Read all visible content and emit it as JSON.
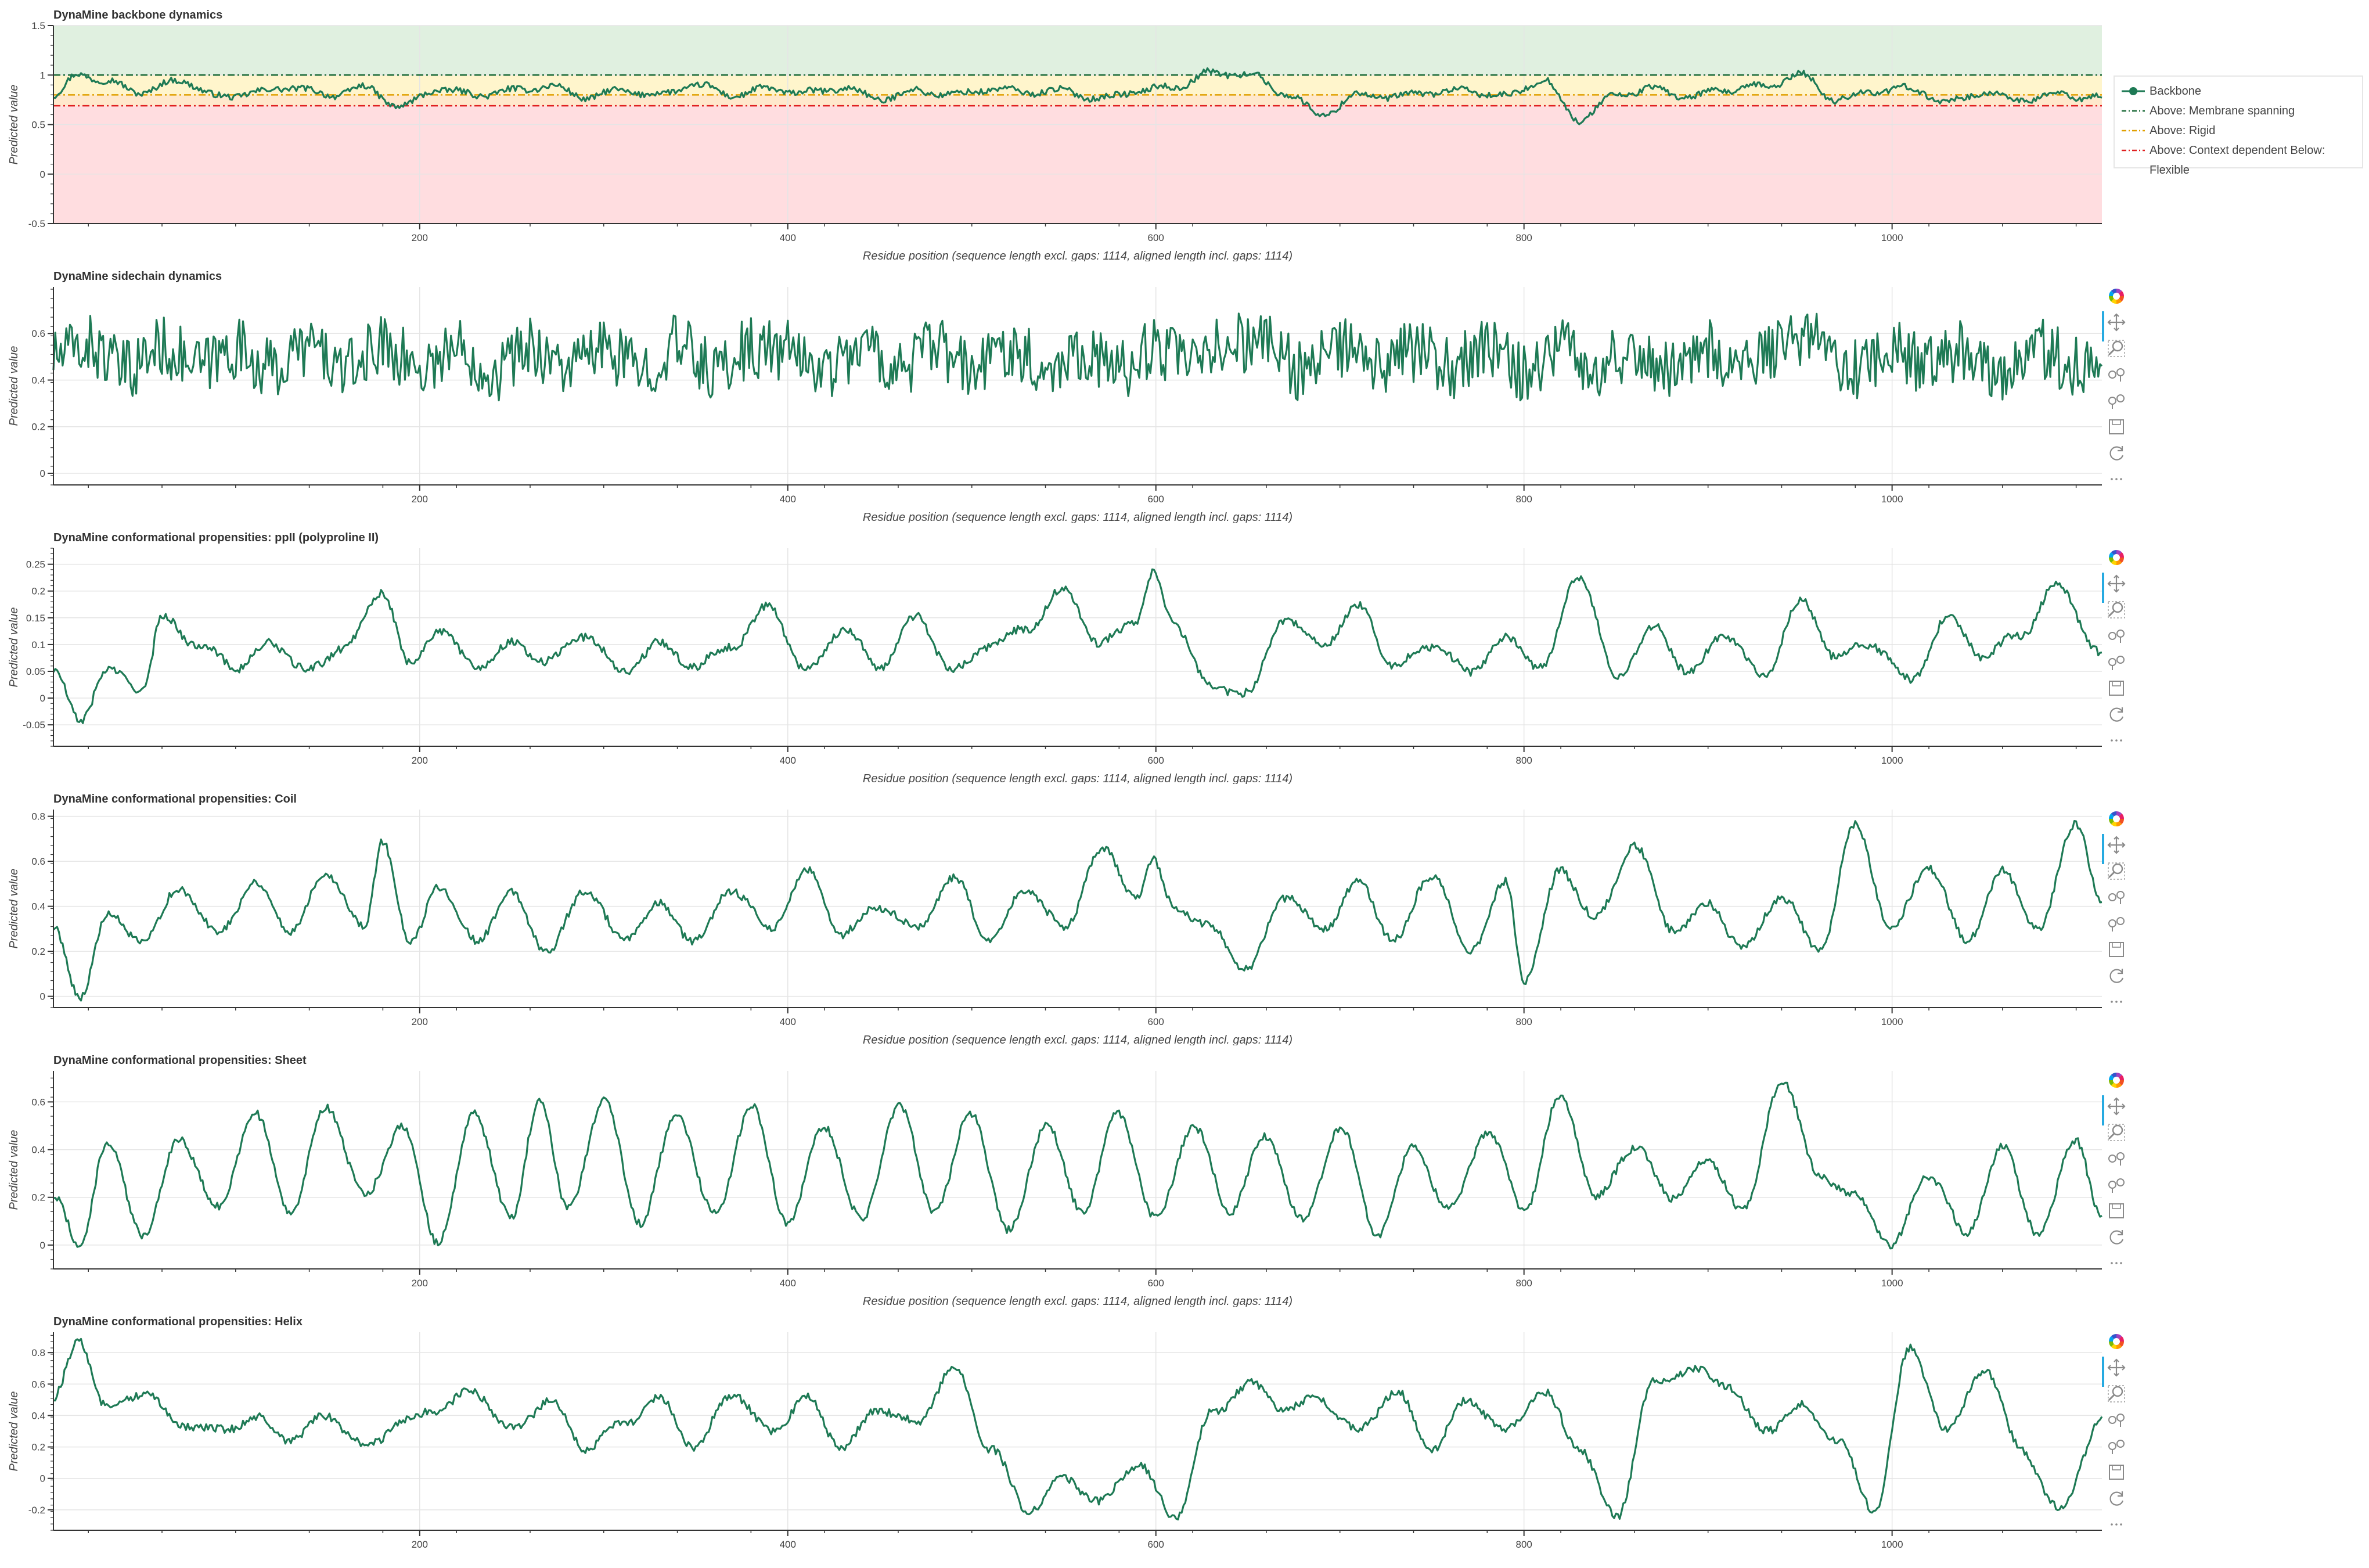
{
  "chart_data": [
    {
      "type": "line",
      "title": "DynaMine backbone dynamics",
      "xlabel": "Residue position (sequence length excl. gaps: 1114, aligned length incl. gaps: 1114)",
      "ylabel": "Predicted value",
      "xlim": [
        1,
        1114
      ],
      "ylim": [
        -0.5,
        1.5
      ],
      "x_ticks": [
        "200",
        "400",
        "600",
        "800",
        "1000"
      ],
      "y_ticks": [
        "1.5",
        "1",
        "0.5",
        "0",
        "-0.5"
      ],
      "grid": true,
      "legend_position": "right",
      "bands": [
        {
          "from": 1.0,
          "to": 1.5,
          "color": "#e0f0e0"
        },
        {
          "from": 0.8,
          "to": 1.0,
          "color": "#fff5cc"
        },
        {
          "from": 0.69,
          "to": 0.8,
          "color": "#ffe8cc"
        },
        {
          "from": -0.5,
          "to": 0.69,
          "color": "#ffdde0"
        }
      ],
      "thresholds": [
        {
          "name": "Above: Membrane spanning",
          "value": 1.0,
          "color": "#1d6b3a"
        },
        {
          "name": "Above: Rigid",
          "value": 0.8,
          "color": "#e0a000"
        },
        {
          "name": "Above: Context dependent Below: Flexible",
          "value": 0.69,
          "color": "#e02020"
        }
      ],
      "series": [
        {
          "name": "Backbone",
          "color": "#1e7a55",
          "x": [
            1,
            15,
            30,
            50,
            70,
            90,
            110,
            130,
            150,
            170,
            190,
            210,
            230,
            250,
            270,
            290,
            310,
            330,
            350,
            370,
            390,
            410,
            430,
            450,
            470,
            490,
            510,
            530,
            550,
            570,
            590,
            610,
            630,
            650,
            670,
            690,
            710,
            730,
            750,
            770,
            790,
            810,
            830,
            850,
            870,
            890,
            910,
            930,
            950,
            970,
            990,
            1010,
            1030,
            1050,
            1070,
            1090,
            1114
          ],
          "values": [
            0.78,
            1.02,
            0.93,
            0.83,
            0.95,
            0.78,
            0.82,
            0.88,
            0.8,
            0.87,
            0.68,
            0.86,
            0.8,
            0.84,
            0.89,
            0.78,
            0.84,
            0.8,
            0.9,
            0.8,
            0.86,
            0.82,
            0.87,
            0.76,
            0.84,
            0.8,
            0.86,
            0.83,
            0.84,
            0.76,
            0.84,
            0.88,
            1.02,
            1.01,
            0.82,
            0.6,
            0.8,
            0.78,
            0.83,
            0.84,
            0.78,
            0.95,
            0.55,
            0.8,
            0.86,
            0.78,
            0.85,
            0.88,
            1.0,
            0.75,
            0.84,
            0.86,
            0.73,
            0.82,
            0.75,
            0.8,
            0.77
          ]
        }
      ]
    },
    {
      "type": "line",
      "title": "DynaMine sidechain dynamics",
      "xlabel": "Residue position (sequence length excl. gaps: 1114, aligned length incl. gaps: 1114)",
      "ylabel": "Predicted value",
      "xlim": [
        1,
        1114
      ],
      "ylim": [
        -0.05,
        0.8
      ],
      "x_ticks": [
        "200",
        "400",
        "600",
        "800",
        "1000"
      ],
      "y_ticks": [
        "0.6",
        "0.4",
        "0.2",
        "0"
      ],
      "grid": true,
      "series": [
        {
          "name": "Sidechain",
          "color": "#1e7a55",
          "x": [
            1,
            20,
            40,
            60,
            80,
            100,
            120,
            140,
            160,
            180,
            200,
            220,
            240,
            260,
            280,
            300,
            320,
            340,
            360,
            380,
            400,
            420,
            440,
            460,
            480,
            500,
            520,
            540,
            560,
            580,
            600,
            620,
            640,
            660,
            680,
            700,
            720,
            740,
            760,
            780,
            800,
            820,
            840,
            860,
            880,
            900,
            920,
            940,
            960,
            980,
            1000,
            1020,
            1040,
            1060,
            1080,
            1100,
            1114
          ],
          "values": [
            0.5,
            0.66,
            0.3,
            0.64,
            0.35,
            0.62,
            0.32,
            0.66,
            0.3,
            0.68,
            0.34,
            0.62,
            0.3,
            0.64,
            0.36,
            0.6,
            0.32,
            0.66,
            0.3,
            0.62,
            0.58,
            0.33,
            0.64,
            0.35,
            0.62,
            0.3,
            0.66,
            0.34,
            0.6,
            0.3,
            0.64,
            0.36,
            0.72,
            0.7,
            0.3,
            0.62,
            0.32,
            0.58,
            0.34,
            0.6,
            0.3,
            0.66,
            0.36,
            0.6,
            0.32,
            0.64,
            0.3,
            0.66,
            0.7,
            0.3,
            0.62,
            0.34,
            0.6,
            0.3,
            0.62,
            0.35,
            0.55
          ]
        }
      ]
    },
    {
      "type": "line",
      "title": "DynaMine conformational propensities: ppII (polyproline II)",
      "xlabel": "Residue position (sequence length excl. gaps: 1114, aligned length incl. gaps: 1114)",
      "ylabel": "Predicted value",
      "xlim": [
        1,
        1114
      ],
      "ylim": [
        -0.09,
        0.28
      ],
      "x_ticks": [
        "200",
        "400",
        "600",
        "800",
        "1000"
      ],
      "y_ticks": [
        "0.25",
        "0.2",
        "0.15",
        "0.1",
        "0.05",
        "0",
        "-0.05"
      ],
      "grid": true,
      "series": [
        {
          "name": "ppII",
          "color": "#1e7a55",
          "x": [
            1,
            15,
            30,
            50,
            60,
            80,
            100,
            120,
            140,
            160,
            180,
            195,
            210,
            230,
            250,
            270,
            290,
            310,
            330,
            350,
            370,
            390,
            410,
            430,
            450,
            470,
            490,
            510,
            530,
            550,
            570,
            590,
            598,
            610,
            630,
            650,
            670,
            690,
            710,
            730,
            750,
            770,
            790,
            810,
            830,
            850,
            870,
            890,
            910,
            930,
            950,
            970,
            990,
            1010,
            1030,
            1050,
            1070,
            1090,
            1114
          ],
          "values": [
            0.05,
            -0.04,
            0.05,
            0.02,
            0.15,
            0.1,
            0.06,
            0.1,
            0.05,
            0.1,
            0.2,
            0.06,
            0.13,
            0.06,
            0.1,
            0.07,
            0.12,
            0.05,
            0.1,
            0.06,
            0.1,
            0.17,
            0.05,
            0.13,
            0.06,
            0.15,
            0.05,
            0.1,
            0.13,
            0.2,
            0.1,
            0.15,
            0.23,
            0.14,
            0.02,
            0.01,
            0.15,
            0.1,
            0.17,
            0.06,
            0.1,
            0.05,
            0.11,
            0.06,
            0.23,
            0.04,
            0.13,
            0.05,
            0.12,
            0.04,
            0.18,
            0.08,
            0.1,
            0.03,
            0.15,
            0.08,
            0.12,
            0.21,
            0.08
          ]
        }
      ]
    },
    {
      "type": "line",
      "title": "DynaMine conformational propensities: Coil",
      "xlabel": "Residue position (sequence length excl. gaps: 1114, aligned length incl. gaps: 1114)",
      "ylabel": "Predicted value",
      "xlim": [
        1,
        1114
      ],
      "ylim": [
        -0.05,
        0.83
      ],
      "x_ticks": [
        "200",
        "400",
        "600",
        "800",
        "1000"
      ],
      "y_ticks": [
        "0.8",
        "0.6",
        "0.4",
        "0.2",
        "0"
      ],
      "grid": true,
      "series": [
        {
          "name": "Coil",
          "color": "#1e7a55",
          "x": [
            1,
            15,
            30,
            50,
            70,
            90,
            110,
            130,
            150,
            170,
            180,
            195,
            210,
            230,
            250,
            270,
            290,
            310,
            330,
            350,
            370,
            390,
            410,
            430,
            450,
            470,
            490,
            510,
            530,
            550,
            570,
            590,
            598,
            610,
            630,
            650,
            670,
            690,
            710,
            730,
            750,
            770,
            790,
            800,
            820,
            840,
            860,
            880,
            900,
            920,
            940,
            960,
            980,
            1000,
            1020,
            1040,
            1060,
            1080,
            1100,
            1114
          ],
          "values": [
            0.3,
            0.0,
            0.35,
            0.25,
            0.48,
            0.28,
            0.5,
            0.3,
            0.55,
            0.3,
            0.7,
            0.22,
            0.5,
            0.25,
            0.45,
            0.2,
            0.48,
            0.25,
            0.4,
            0.25,
            0.48,
            0.3,
            0.55,
            0.28,
            0.4,
            0.3,
            0.52,
            0.25,
            0.48,
            0.3,
            0.65,
            0.45,
            0.6,
            0.4,
            0.3,
            0.12,
            0.45,
            0.3,
            0.5,
            0.25,
            0.55,
            0.2,
            0.5,
            0.08,
            0.55,
            0.35,
            0.68,
            0.3,
            0.4,
            0.22,
            0.45,
            0.2,
            0.75,
            0.3,
            0.58,
            0.25,
            0.55,
            0.3,
            0.78,
            0.4
          ]
        }
      ]
    },
    {
      "type": "line",
      "title": "DynaMine conformational propensities: Sheet",
      "xlabel": "Residue position (sequence length excl. gaps: 1114, aligned length incl. gaps: 1114)",
      "ylabel": "Predicted value",
      "xlim": [
        1,
        1114
      ],
      "ylim": [
        -0.1,
        0.73
      ],
      "x_ticks": [
        "200",
        "400",
        "600",
        "800",
        "1000"
      ],
      "y_ticks": [
        "0.6",
        "0.4",
        "0.2",
        "0"
      ],
      "grid": true,
      "series": [
        {
          "name": "Sheet",
          "color": "#1e7a55",
          "x": [
            1,
            15,
            30,
            50,
            70,
            90,
            110,
            130,
            150,
            170,
            190,
            210,
            230,
            250,
            265,
            280,
            300,
            320,
            340,
            360,
            380,
            400,
            420,
            440,
            460,
            480,
            500,
            520,
            540,
            560,
            580,
            600,
            620,
            640,
            660,
            680,
            700,
            720,
            740,
            760,
            780,
            800,
            820,
            840,
            860,
            880,
            900,
            920,
            940,
            960,
            980,
            1000,
            1020,
            1040,
            1060,
            1080,
            1100,
            1114
          ],
          "values": [
            0.2,
            0.0,
            0.42,
            0.05,
            0.45,
            0.15,
            0.55,
            0.15,
            0.58,
            0.2,
            0.5,
            0.02,
            0.55,
            0.1,
            0.62,
            0.15,
            0.6,
            0.1,
            0.55,
            0.12,
            0.58,
            0.1,
            0.5,
            0.1,
            0.58,
            0.15,
            0.55,
            0.05,
            0.5,
            0.15,
            0.55,
            0.1,
            0.5,
            0.15,
            0.45,
            0.1,
            0.5,
            0.05,
            0.4,
            0.15,
            0.48,
            0.15,
            0.62,
            0.2,
            0.42,
            0.2,
            0.35,
            0.15,
            0.7,
            0.3,
            0.2,
            0.0,
            0.3,
            0.05,
            0.4,
            0.05,
            0.45,
            0.1
          ]
        }
      ]
    },
    {
      "type": "line",
      "title": "DynaMine conformational propensities: Helix",
      "xlabel": "",
      "ylabel": "Predicted value",
      "xlim": [
        1,
        1114
      ],
      "ylim": [
        -0.33,
        0.93
      ],
      "x_ticks": [
        "200",
        "400",
        "600",
        "800",
        "1000"
      ],
      "y_ticks": [
        "0.8",
        "0.6",
        "0.4",
        "0.2",
        "0",
        "-0.2"
      ],
      "grid": true,
      "series": [
        {
          "name": "Helix",
          "color": "#1e7a55",
          "x": [
            1,
            15,
            30,
            50,
            70,
            90,
            110,
            130,
            150,
            170,
            190,
            210,
            230,
            250,
            270,
            290,
            310,
            330,
            350,
            370,
            390,
            410,
            430,
            450,
            470,
            490,
            510,
            530,
            550,
            570,
            590,
            610,
            630,
            650,
            670,
            690,
            710,
            730,
            750,
            770,
            790,
            810,
            830,
            850,
            870,
            890,
            910,
            930,
            950,
            970,
            990,
            1010,
            1030,
            1050,
            1070,
            1090,
            1114
          ],
          "values": [
            0.5,
            0.88,
            0.45,
            0.55,
            0.35,
            0.3,
            0.38,
            0.25,
            0.4,
            0.2,
            0.35,
            0.45,
            0.55,
            0.3,
            0.5,
            0.2,
            0.35,
            0.5,
            0.2,
            0.55,
            0.3,
            0.5,
            0.2,
            0.45,
            0.35,
            0.7,
            0.2,
            -0.2,
            0.0,
            -0.15,
            0.1,
            -0.25,
            0.4,
            0.6,
            0.45,
            0.5,
            0.3,
            0.55,
            0.2,
            0.5,
            0.3,
            0.55,
            0.2,
            -0.25,
            0.6,
            0.7,
            0.6,
            0.3,
            0.45,
            0.25,
            -0.2,
            0.82,
            0.3,
            0.7,
            0.2,
            -0.2,
            0.35
          ]
        }
      ]
    }
  ]
}
